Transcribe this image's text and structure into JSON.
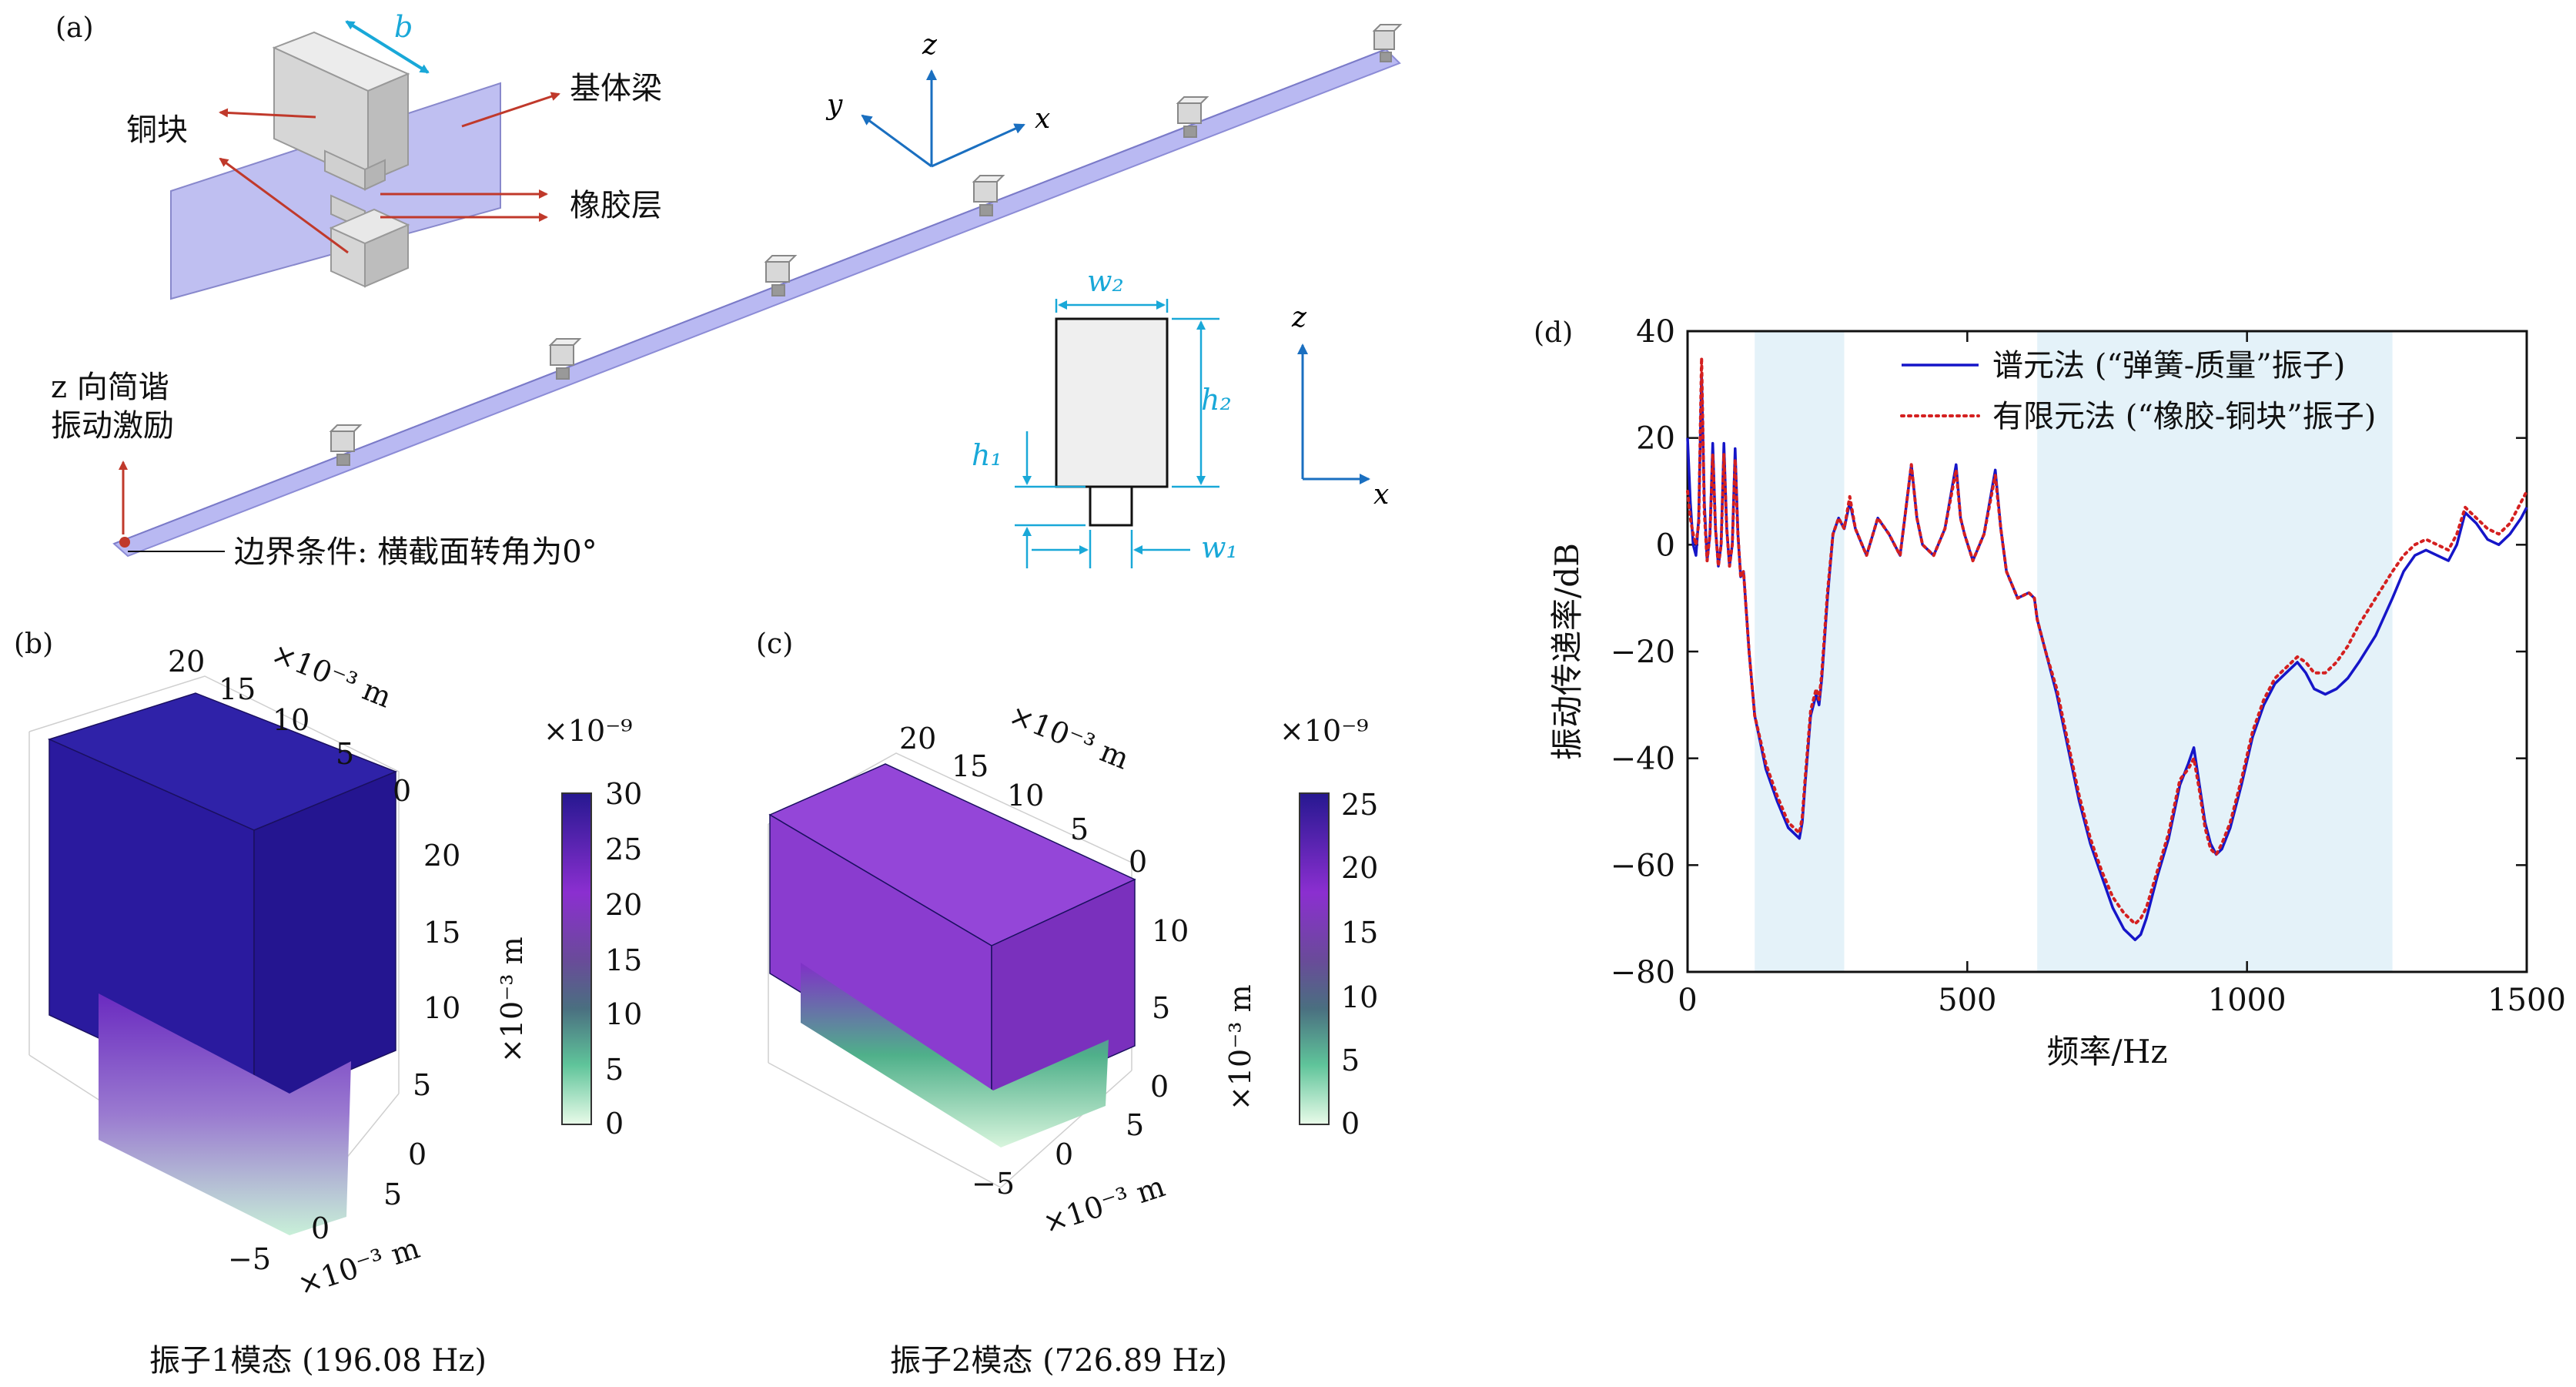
{
  "panels": {
    "a": "(a)",
    "b": "(b)",
    "c": "(c)",
    "d": "(d)"
  },
  "panel_a": {
    "width_b": "b",
    "copper_block": "铜块",
    "base_beam": "基体梁",
    "rubber_layer": "橡胶层",
    "axis_x": "x",
    "axis_y": "y",
    "axis_z": "z",
    "excitation_line1": "z 向简谐",
    "excitation_line2": "振动激励",
    "boundary": "边界条件: 横截面转角为0°",
    "dim_w2": "w₂",
    "dim_h2": "h₂",
    "dim_h1": "h₁",
    "dim_w1": "w₁",
    "cs_z": "z",
    "cs_x": "x"
  },
  "panel_b": {
    "caption": "振子1模态 (196.08 Hz)",
    "scale_exp": "×10⁻⁹",
    "colorbar_ticks": [
      "30",
      "25",
      "20",
      "15",
      "10",
      "5",
      "0"
    ],
    "colorbar_label": "×10⁻³ m",
    "axis_unit": "×10⁻³ m",
    "top_ticks": [
      "20",
      "15",
      "10",
      "5",
      "0"
    ],
    "right_ticks": [
      "20",
      "15",
      "10",
      "5",
      "0"
    ],
    "bottom_ticks": [
      "5",
      "0",
      "−5"
    ],
    "colors": {
      "block": "#2a1a9e",
      "block_top": "#2f22a8",
      "block_side": "#241590"
    }
  },
  "panel_c": {
    "caption": "振子2模态 (726.89 Hz)",
    "scale_exp": "×10⁻⁹",
    "colorbar_ticks": [
      "25",
      "20",
      "15",
      "10",
      "5",
      "0"
    ],
    "colorbar_label": "×10⁻³ m",
    "axis_unit": "×10⁻³ m",
    "top_ticks": [
      "20",
      "15",
      "10",
      "5",
      "0"
    ],
    "right_ticks": [
      "10",
      "5",
      "0"
    ],
    "bottom_ticks": [
      "5",
      "0",
      "−5"
    ],
    "colors": {
      "block": "#8a3ccf",
      "block_top": "#9446d8",
      "block_side": "#7a30bd"
    }
  },
  "chart_data": {
    "type": "line",
    "title": "",
    "xlabel": "频率/Hz",
    "ylabel": "振动传递率/dB",
    "xlim": [
      0,
      1500
    ],
    "ylim": [
      -80,
      40
    ],
    "xticks": [
      0,
      500,
      1000,
      1500
    ],
    "yticks": [
      -80,
      -60,
      -40,
      -20,
      0,
      20,
      40
    ],
    "bandgaps": [
      [
        120,
        280
      ],
      [
        625,
        1260
      ]
    ],
    "legend_position": "top-right",
    "series": [
      {
        "name": "谱元法 (“弹簧-质量”振子)",
        "color": "#1515c8",
        "style": "solid",
        "x": [
          0,
          5,
          10,
          15,
          20,
          25,
          30,
          35,
          40,
          45,
          50,
          55,
          60,
          65,
          70,
          75,
          80,
          85,
          90,
          95,
          100,
          110,
          120,
          140,
          160,
          180,
          200,
          205,
          210,
          220,
          230,
          235,
          240,
          250,
          260,
          270,
          280,
          290,
          300,
          320,
          340,
          360,
          380,
          400,
          410,
          420,
          440,
          460,
          480,
          488,
          495,
          510,
          530,
          550,
          560,
          570,
          590,
          610,
          620,
          625,
          640,
          660,
          680,
          700,
          720,
          740,
          760,
          780,
          800,
          810,
          820,
          840,
          860,
          880,
          895,
          905,
          915,
          925,
          935,
          945,
          955,
          970,
          990,
          1010,
          1030,
          1050,
          1070,
          1090,
          1105,
          1120,
          1140,
          1160,
          1180,
          1200,
          1230,
          1260,
          1280,
          1300,
          1320,
          1340,
          1360,
          1375,
          1390,
          1410,
          1430,
          1450,
          1470,
          1490,
          1500
        ],
        "y": [
          20,
          8,
          0,
          -2,
          5,
          32,
          8,
          -3,
          2,
          19,
          3,
          -4,
          0,
          19,
          3,
          -4,
          0,
          18,
          2,
          -6,
          -5,
          -20,
          -32,
          -42,
          -48,
          -53,
          -55,
          -52,
          -45,
          -32,
          -28,
          -30,
          -25,
          -10,
          2,
          5,
          3,
          8,
          3,
          -2,
          5,
          2,
          -2,
          15,
          5,
          0,
          -2,
          3,
          15,
          5,
          2,
          -3,
          2,
          14,
          3,
          -5,
          -10,
          -9,
          -10,
          -14,
          -20,
          -28,
          -38,
          -48,
          -56,
          -62,
          -68,
          -72,
          -74,
          -73,
          -70,
          -62,
          -55,
          -45,
          -41,
          -38,
          -45,
          -52,
          -56,
          -58,
          -57,
          -53,
          -45,
          -36,
          -30,
          -26,
          -24,
          -22,
          -24,
          -27,
          -28,
          -27,
          -25,
          -22,
          -17,
          -10,
          -5,
          -2,
          -1,
          -2,
          -3,
          0,
          6,
          4,
          1,
          0,
          2,
          5,
          7
        ]
      },
      {
        "name": "有限元法 (“橡胶-铜块”振子)",
        "color": "#d42020",
        "style": "dotted",
        "x": [
          0,
          5,
          10,
          15,
          20,
          25,
          30,
          35,
          40,
          45,
          50,
          55,
          60,
          65,
          70,
          75,
          80,
          85,
          90,
          95,
          100,
          110,
          120,
          140,
          160,
          180,
          200,
          205,
          210,
          220,
          230,
          235,
          240,
          250,
          260,
          270,
          280,
          290,
          300,
          320,
          340,
          360,
          380,
          400,
          410,
          420,
          440,
          460,
          480,
          488,
          495,
          510,
          530,
          550,
          560,
          570,
          590,
          610,
          620,
          625,
          640,
          660,
          680,
          700,
          720,
          740,
          760,
          780,
          800,
          810,
          820,
          840,
          860,
          880,
          895,
          905,
          915,
          925,
          935,
          945,
          955,
          970,
          990,
          1010,
          1030,
          1050,
          1070,
          1090,
          1105,
          1120,
          1140,
          1160,
          1180,
          1200,
          1230,
          1260,
          1280,
          1300,
          1320,
          1340,
          1360,
          1375,
          1390,
          1410,
          1430,
          1450,
          1470,
          1490,
          1500
        ],
        "y": [
          10,
          5,
          2,
          0,
          4,
          35,
          6,
          -3,
          2,
          17,
          3,
          -4,
          0,
          17,
          3,
          -4,
          0,
          16,
          2,
          -6,
          -5,
          -20,
          -32,
          -41,
          -47,
          -52,
          -54,
          -51,
          -44,
          -31,
          -27,
          -29,
          -24,
          -9,
          2,
          5,
          3,
          9,
          3,
          -2,
          5,
          2,
          -2,
          15,
          5,
          0,
          -2,
          3,
          14,
          5,
          2,
          -3,
          2,
          13,
          3,
          -5,
          -10,
          -9,
          -10,
          -14,
          -20,
          -27,
          -37,
          -47,
          -55,
          -61,
          -66,
          -69,
          -71,
          -70,
          -68,
          -61,
          -54,
          -44,
          -42,
          -40,
          -46,
          -53,
          -57,
          -58,
          -56,
          -52,
          -44,
          -35,
          -29,
          -25,
          -23,
          -21,
          -22,
          -24,
          -24,
          -22,
          -19,
          -15,
          -10,
          -5,
          -2,
          0,
          1,
          0,
          -1,
          2,
          7,
          5,
          3,
          2,
          4,
          8,
          10
        ]
      }
    ]
  }
}
